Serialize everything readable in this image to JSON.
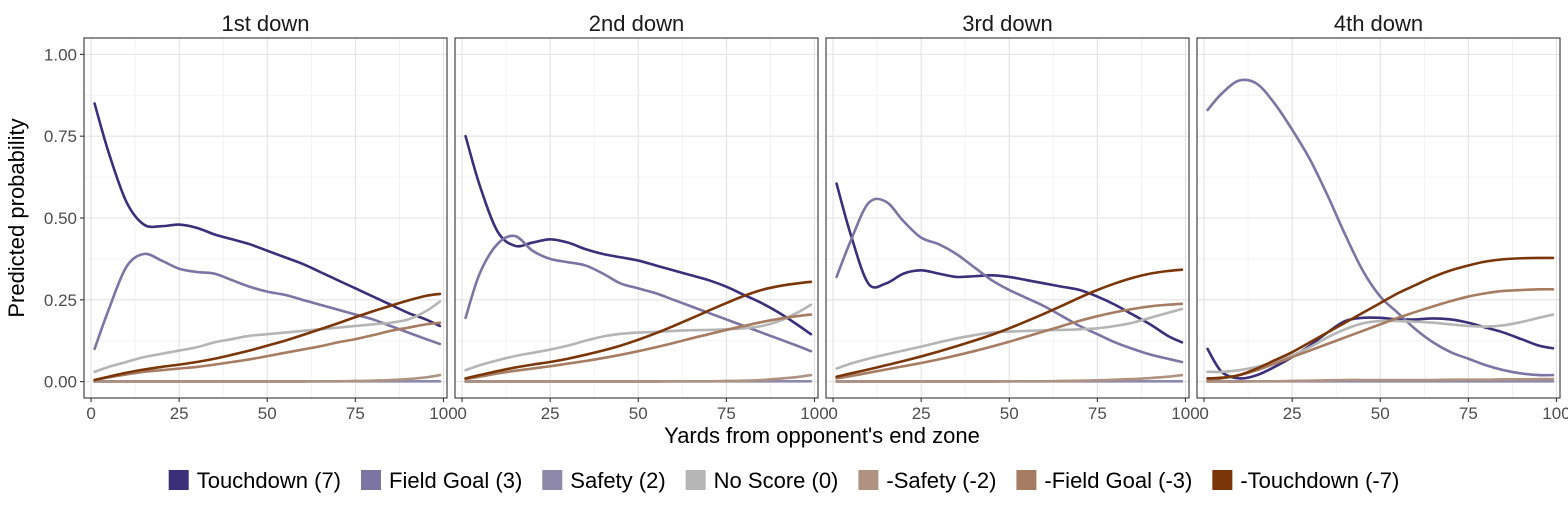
{
  "chart_data": {
    "type": "line",
    "xlabel": "Yards from opponent's end zone",
    "ylabel": "Predicted probability",
    "xlim": [
      -2,
      101
    ],
    "ylim": [
      -0.05,
      1.05
    ],
    "x_ticks": [
      0,
      25,
      50,
      75,
      100
    ],
    "x_tick_labels": [
      "0",
      "25",
      "50",
      "75",
      "100"
    ],
    "y_ticks": [
      0,
      0.25,
      0.5,
      0.75,
      1.0
    ],
    "y_tick_labels": [
      "0.00",
      "0.25",
      "0.50",
      "0.75",
      "1.00"
    ],
    "grid": true,
    "legend_position": "bottom",
    "x": [
      1,
      5,
      10,
      15,
      20,
      25,
      30,
      35,
      40,
      45,
      50,
      55,
      60,
      65,
      70,
      75,
      80,
      85,
      90,
      95,
      99
    ],
    "series_meta": [
      {
        "name": "Touchdown (7)",
        "color": "#3b2f7a"
      },
      {
        "name": "Field Goal (3)",
        "color": "#7c74a3"
      },
      {
        "name": "Safety (2)",
        "color": "#8e88ab"
      },
      {
        "name": "No Score (0)",
        "color": "#b5b5b5"
      },
      {
        "name": "-Safety (-2)",
        "color": "#b09282"
      },
      {
        "name": "-Field Goal (-3)",
        "color": "#a67c62"
      },
      {
        "name": "-Touchdown (-7)",
        "color": "#7a3608"
      }
    ],
    "panels": [
      {
        "title": "1st down",
        "series": [
          {
            "name": "Touchdown (7)",
            "values": [
              0.85,
              0.7,
              0.55,
              0.48,
              0.475,
              0.48,
              0.47,
              0.45,
              0.435,
              0.42,
              0.4,
              0.38,
              0.36,
              0.335,
              0.31,
              0.285,
              0.26,
              0.235,
              0.21,
              0.19,
              0.17
            ]
          },
          {
            "name": "Field Goal (3)",
            "values": [
              0.1,
              0.22,
              0.35,
              0.39,
              0.37,
              0.345,
              0.335,
              0.33,
              0.31,
              0.29,
              0.275,
              0.265,
              0.25,
              0.235,
              0.22,
              0.205,
              0.19,
              0.17,
              0.15,
              0.13,
              0.115
            ]
          },
          {
            "name": "Safety (2)",
            "values": [
              0.001,
              0.001,
              0.001,
              0.001,
              0.001,
              0.001,
              0.001,
              0.001,
              0.001,
              0.001,
              0.001,
              0.001,
              0.001,
              0.001,
              0.001,
              0.001,
              0.001,
              0.001,
              0.001,
              0.001,
              0.001
            ]
          },
          {
            "name": "No Score (0)",
            "values": [
              0.03,
              0.045,
              0.06,
              0.075,
              0.085,
              0.095,
              0.105,
              0.12,
              0.13,
              0.14,
              0.145,
              0.15,
              0.155,
              0.16,
              0.165,
              0.17,
              0.175,
              0.18,
              0.19,
              0.215,
              0.245
            ]
          },
          {
            "name": "-Safety (-2)",
            "values": [
              0.0,
              0.0,
              0.0,
              0.0,
              0.0,
              0.0,
              0.0,
              0.0,
              0.0,
              0.0,
              0.0,
              0.0,
              0.0,
              0.001,
              0.001,
              0.002,
              0.003,
              0.005,
              0.008,
              0.013,
              0.02
            ]
          },
          {
            "name": "-Field Goal (-3)",
            "values": [
              0.005,
              0.013,
              0.022,
              0.03,
              0.035,
              0.04,
              0.045,
              0.052,
              0.06,
              0.068,
              0.078,
              0.088,
              0.098,
              0.108,
              0.12,
              0.13,
              0.142,
              0.155,
              0.165,
              0.175,
              0.18
            ]
          },
          {
            "name": "-Touchdown (-7)",
            "values": [
              0.005,
              0.015,
              0.027,
              0.037,
              0.045,
              0.052,
              0.06,
              0.07,
              0.082,
              0.095,
              0.11,
              0.125,
              0.142,
              0.16,
              0.178,
              0.197,
              0.215,
              0.232,
              0.248,
              0.262,
              0.268
            ]
          }
        ]
      },
      {
        "title": "2nd down",
        "series": [
          {
            "name": "Touchdown (7)",
            "values": [
              0.75,
              0.6,
              0.46,
              0.415,
              0.425,
              0.435,
              0.425,
              0.405,
              0.39,
              0.38,
              0.37,
              0.355,
              0.34,
              0.325,
              0.31,
              0.29,
              0.265,
              0.24,
              0.21,
              0.175,
              0.145
            ]
          },
          {
            "name": "Field Goal (3)",
            "values": [
              0.195,
              0.33,
              0.42,
              0.445,
              0.4,
              0.375,
              0.365,
              0.355,
              0.33,
              0.3,
              0.285,
              0.27,
              0.25,
              0.23,
              0.21,
              0.19,
              0.17,
              0.15,
              0.13,
              0.11,
              0.093
            ]
          },
          {
            "name": "Safety (2)",
            "values": [
              0.001,
              0.001,
              0.001,
              0.001,
              0.001,
              0.001,
              0.001,
              0.001,
              0.001,
              0.001,
              0.001,
              0.001,
              0.001,
              0.001,
              0.001,
              0.001,
              0.001,
              0.001,
              0.001,
              0.001,
              0.001
            ]
          },
          {
            "name": "No Score (0)",
            "values": [
              0.035,
              0.05,
              0.065,
              0.078,
              0.088,
              0.098,
              0.11,
              0.125,
              0.138,
              0.146,
              0.15,
              0.152,
              0.155,
              0.157,
              0.158,
              0.16,
              0.163,
              0.17,
              0.185,
              0.21,
              0.235
            ]
          },
          {
            "name": "-Safety (-2)",
            "values": [
              0.0,
              0.0,
              0.0,
              0.0,
              0.0,
              0.0,
              0.0,
              0.0,
              0.0,
              0.0,
              0.0,
              0.0,
              0.001,
              0.001,
              0.001,
              0.002,
              0.003,
              0.005,
              0.009,
              0.014,
              0.02
            ]
          },
          {
            "name": "-Field Goal (-3)",
            "values": [
              0.008,
              0.015,
              0.025,
              0.033,
              0.04,
              0.047,
              0.055,
              0.063,
              0.072,
              0.082,
              0.093,
              0.105,
              0.118,
              0.132,
              0.145,
              0.158,
              0.17,
              0.182,
              0.192,
              0.2,
              0.205
            ]
          },
          {
            "name": "-Touchdown (-7)",
            "values": [
              0.01,
              0.02,
              0.032,
              0.043,
              0.052,
              0.06,
              0.07,
              0.082,
              0.095,
              0.11,
              0.128,
              0.148,
              0.17,
              0.193,
              0.217,
              0.24,
              0.262,
              0.28,
              0.292,
              0.3,
              0.305
            ]
          }
        ]
      },
      {
        "title": "3rd down",
        "series": [
          {
            "name": "Touchdown (7)",
            "values": [
              0.605,
              0.45,
              0.3,
              0.3,
              0.33,
              0.34,
              0.33,
              0.32,
              0.322,
              0.325,
              0.32,
              0.31,
              0.3,
              0.29,
              0.28,
              0.26,
              0.235,
              0.205,
              0.175,
              0.14,
              0.12
            ]
          },
          {
            "name": "Field Goal (3)",
            "values": [
              0.32,
              0.43,
              0.545,
              0.55,
              0.49,
              0.44,
              0.42,
              0.39,
              0.35,
              0.31,
              0.28,
              0.255,
              0.23,
              0.2,
              0.17,
              0.145,
              0.12,
              0.1,
              0.083,
              0.07,
              0.06
            ]
          },
          {
            "name": "Safety (2)",
            "values": [
              0.001,
              0.001,
              0.001,
              0.001,
              0.001,
              0.001,
              0.001,
              0.001,
              0.001,
              0.001,
              0.001,
              0.001,
              0.001,
              0.001,
              0.001,
              0.001,
              0.001,
              0.001,
              0.001,
              0.001,
              0.001
            ]
          },
          {
            "name": "No Score (0)",
            "values": [
              0.04,
              0.055,
              0.07,
              0.083,
              0.095,
              0.107,
              0.12,
              0.132,
              0.142,
              0.15,
              0.153,
              0.155,
              0.157,
              0.158,
              0.16,
              0.163,
              0.17,
              0.18,
              0.195,
              0.21,
              0.222
            ]
          },
          {
            "name": "-Safety (-2)",
            "values": [
              0.0,
              0.0,
              0.0,
              0.0,
              0.0,
              0.0,
              0.0,
              0.0,
              0.0,
              0.0,
              0.001,
              0.001,
              0.001,
              0.002,
              0.003,
              0.004,
              0.006,
              0.008,
              0.011,
              0.015,
              0.02
            ]
          },
          {
            "name": "-Field Goal (-3)",
            "values": [
              0.01,
              0.017,
              0.027,
              0.037,
              0.047,
              0.057,
              0.068,
              0.08,
              0.093,
              0.107,
              0.122,
              0.138,
              0.154,
              0.17,
              0.186,
              0.2,
              0.212,
              0.222,
              0.23,
              0.235,
              0.238
            ]
          },
          {
            "name": "-Touchdown (-7)",
            "values": [
              0.015,
              0.025,
              0.037,
              0.05,
              0.063,
              0.077,
              0.092,
              0.108,
              0.125,
              0.143,
              0.163,
              0.185,
              0.208,
              0.232,
              0.257,
              0.28,
              0.3,
              0.317,
              0.33,
              0.338,
              0.342
            ]
          }
        ]
      },
      {
        "title": "4th down",
        "series": [
          {
            "name": "Touchdown (7)",
            "values": [
              0.1,
              0.03,
              0.01,
              0.02,
              0.045,
              0.075,
              0.11,
              0.15,
              0.185,
              0.195,
              0.195,
              0.19,
              0.19,
              0.193,
              0.19,
              0.18,
              0.165,
              0.15,
              0.13,
              0.11,
              0.102
            ]
          },
          {
            "name": "Field Goal (3)",
            "values": [
              0.83,
              0.88,
              0.92,
              0.91,
              0.85,
              0.77,
              0.68,
              0.57,
              0.45,
              0.34,
              0.26,
              0.21,
              0.16,
              0.12,
              0.09,
              0.07,
              0.05,
              0.035,
              0.025,
              0.02,
              0.02
            ]
          },
          {
            "name": "Safety (2)",
            "values": [
              0.001,
              0.001,
              0.001,
              0.001,
              0.001,
              0.001,
              0.001,
              0.001,
              0.001,
              0.001,
              0.001,
              0.001,
              0.001,
              0.001,
              0.001,
              0.001,
              0.001,
              0.001,
              0.001,
              0.001,
              0.001
            ]
          },
          {
            "name": "No Score (0)",
            "values": [
              0.03,
              0.03,
              0.035,
              0.045,
              0.06,
              0.08,
              0.105,
              0.135,
              0.16,
              0.178,
              0.185,
              0.185,
              0.183,
              0.18,
              0.175,
              0.17,
              0.168,
              0.172,
              0.182,
              0.195,
              0.205
            ]
          },
          {
            "name": "-Safety (-2)",
            "values": [
              0.0,
              0.0,
              0.0,
              0.001,
              0.001,
              0.002,
              0.003,
              0.004,
              0.005,
              0.005,
              0.005,
              0.005,
              0.005,
              0.005,
              0.006,
              0.006,
              0.006,
              0.007,
              0.007,
              0.008,
              0.008
            ]
          },
          {
            "name": "-Field Goal (-3)",
            "values": [
              0.005,
              0.01,
              0.02,
              0.035,
              0.055,
              0.075,
              0.095,
              0.115,
              0.135,
              0.155,
              0.175,
              0.195,
              0.213,
              0.23,
              0.246,
              0.26,
              0.27,
              0.277,
              0.28,
              0.282,
              0.282
            ]
          },
          {
            "name": "-Touchdown (-7)",
            "values": [
              0.01,
              0.012,
              0.02,
              0.04,
              0.065,
              0.09,
              0.12,
              0.15,
              0.18,
              0.21,
              0.24,
              0.27,
              0.295,
              0.32,
              0.34,
              0.355,
              0.367,
              0.374,
              0.377,
              0.378,
              0.378
            ]
          }
        ]
      }
    ]
  }
}
